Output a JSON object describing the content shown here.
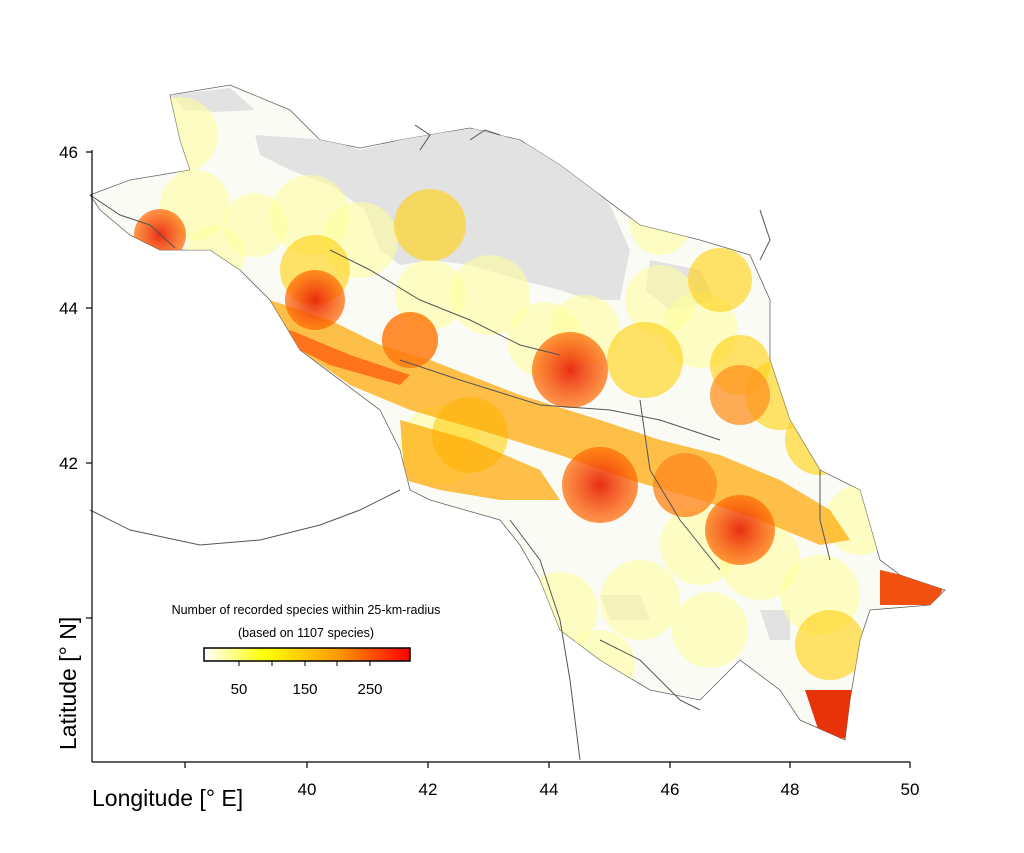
{
  "axes": {
    "x_title": "Longitude [° E]",
    "y_title": "Latitude [° N]",
    "x_ticks": [
      "40",
      "42",
      "44",
      "46",
      "48",
      "50"
    ],
    "y_ticks": [
      "46",
      "44",
      "42"
    ]
  },
  "legend": {
    "title": "Number of recorded species within 25-km-radius",
    "subtitle": "(based on  1107 species)",
    "ticks": [
      "50",
      "150",
      "250"
    ],
    "scale_colors": [
      "#ffffff",
      "#ffff00",
      "#ff9900",
      "#ff0000"
    ]
  },
  "colors": {
    "no_data": "#e2e2e2",
    "low": "#ffffcc",
    "mid": "#ffd700",
    "high": "#ff8c00",
    "very_high": "#e8240a",
    "borders": "#555555"
  }
}
